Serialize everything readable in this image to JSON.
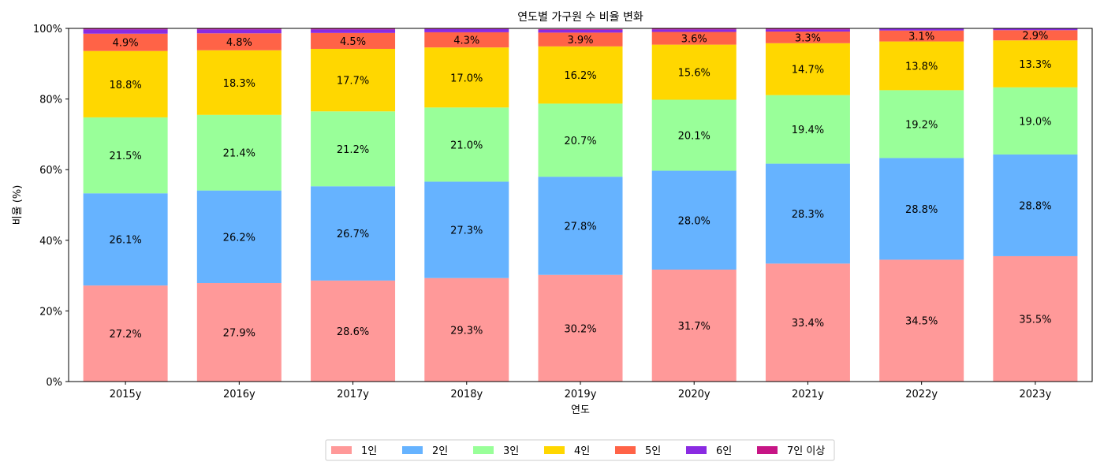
{
  "chart_data": {
    "type": "bar",
    "stacked": true,
    "title": "연도별 가구원 수 비율 변화",
    "xlabel": "연도",
    "ylabel": "비율 (%)",
    "ylim": [
      0,
      100
    ],
    "yticks": [
      {
        "value": 0,
        "label": "0%"
      },
      {
        "value": 20,
        "label": "20%"
      },
      {
        "value": 40,
        "label": "40%"
      },
      {
        "value": 60,
        "label": "60%"
      },
      {
        "value": 80,
        "label": "80%"
      },
      {
        "value": 100,
        "label": "100%"
      }
    ],
    "categories": [
      "2015y",
      "2016y",
      "2017y",
      "2018y",
      "2019y",
      "2020y",
      "2021y",
      "2022y",
      "2023y"
    ],
    "series": [
      {
        "name": "1인",
        "color": "#ff9999",
        "values": [
          27.2,
          27.9,
          28.6,
          29.3,
          30.2,
          31.7,
          33.4,
          34.5,
          35.5
        ],
        "labels": [
          "27.2%",
          "27.9%",
          "28.6%",
          "29.3%",
          "30.2%",
          "31.7%",
          "33.4%",
          "34.5%",
          "35.5%"
        ]
      },
      {
        "name": "2인",
        "color": "#66b3ff",
        "values": [
          26.1,
          26.2,
          26.7,
          27.3,
          27.8,
          28.0,
          28.3,
          28.8,
          28.8
        ],
        "labels": [
          "26.1%",
          "26.2%",
          "26.7%",
          "27.3%",
          "27.8%",
          "28.0%",
          "28.3%",
          "28.8%",
          "28.8%"
        ]
      },
      {
        "name": "3인",
        "color": "#99ff99",
        "values": [
          21.5,
          21.4,
          21.2,
          21.0,
          20.7,
          20.1,
          19.4,
          19.2,
          19.0
        ],
        "labels": [
          "21.5%",
          "21.4%",
          "21.2%",
          "21.0%",
          "20.7%",
          "20.1%",
          "19.4%",
          "19.2%",
          "19.0%"
        ]
      },
      {
        "name": "4인",
        "color": "#ffd700",
        "values": [
          18.8,
          18.3,
          17.7,
          17.0,
          16.2,
          15.6,
          14.7,
          13.8,
          13.3
        ],
        "labels": [
          "18.8%",
          "18.3%",
          "17.7%",
          "17.0%",
          "16.2%",
          "15.6%",
          "14.7%",
          "13.8%",
          "13.3%"
        ]
      },
      {
        "name": "5인",
        "color": "#ff6347",
        "values": [
          4.9,
          4.8,
          4.5,
          4.3,
          3.9,
          3.6,
          3.3,
          3.1,
          2.9
        ],
        "labels": [
          "4.9%",
          "4.8%",
          "4.5%",
          "4.3%",
          "3.9%",
          "3.6%",
          "3.3%",
          "3.1%",
          "2.9%"
        ]
      },
      {
        "name": "6인",
        "color": "#8a2be2",
        "values": [
          1.2,
          1.1,
          1.0,
          0.9,
          0.8,
          0.7,
          0.6,
          0.5,
          0.4
        ],
        "labels": []
      },
      {
        "name": "7인 이상",
        "color": "#c71585",
        "values": [
          0.3,
          0.3,
          0.3,
          0.2,
          0.2,
          0.2,
          0.2,
          0.1,
          0.1
        ],
        "labels": []
      }
    ],
    "grid": false,
    "legend_position": "bottom-center"
  }
}
